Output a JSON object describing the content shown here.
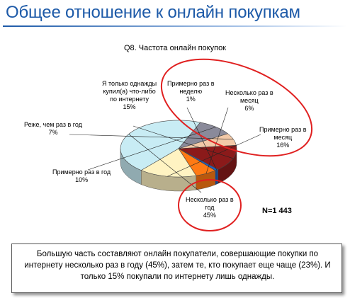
{
  "header": {
    "title": "Общее отношение к онлайн покупкам"
  },
  "chart_data": {
    "type": "pie",
    "title": "Q8. Частота онлайн покупок",
    "note_n": "N=1 443",
    "slices": [
      {
        "label_lines": [
          "Несколько раз в",
          "год"
        ],
        "value_label": "45%",
        "value": 45,
        "color": "#c8ecf4"
      },
      {
        "label_lines": [
          "Примерно раз в год"
        ],
        "value_label": "10%",
        "value": 10,
        "color": "#8a8a9a"
      },
      {
        "label_lines": [
          "Реже, чем раз в год"
        ],
        "value_label": "7%",
        "value": 7,
        "color": "#f2c9a8"
      },
      {
        "label_lines": [
          "Я только однажды",
          "купил(а) что-либо",
          "по интернету"
        ],
        "value_label": "15%",
        "value": 15,
        "color": "#8b1a1a"
      },
      {
        "label_lines": [
          "Примерно раз в",
          "неделю"
        ],
        "value_label": "1%",
        "value": 1,
        "color": "#1f5fbf"
      },
      {
        "label_lines": [
          "Несколько раз в",
          "месяц"
        ],
        "value_label": "6%",
        "value": 6,
        "color": "#ff7a14"
      },
      {
        "label_lines": [
          "Примерно раз в",
          "месяц"
        ],
        "value_label": "16%",
        "value": 16,
        "color": "#fff3c2"
      }
    ],
    "highlight_color": "#e02020"
  },
  "footer": {
    "note": "Большую часть составляют онлайн покупатели, совершающие покупки по интернету несколько раз в году (45%), затем те, кто покупает еще чаще (23%). И только 15% покупали по интернету лишь однажды."
  }
}
